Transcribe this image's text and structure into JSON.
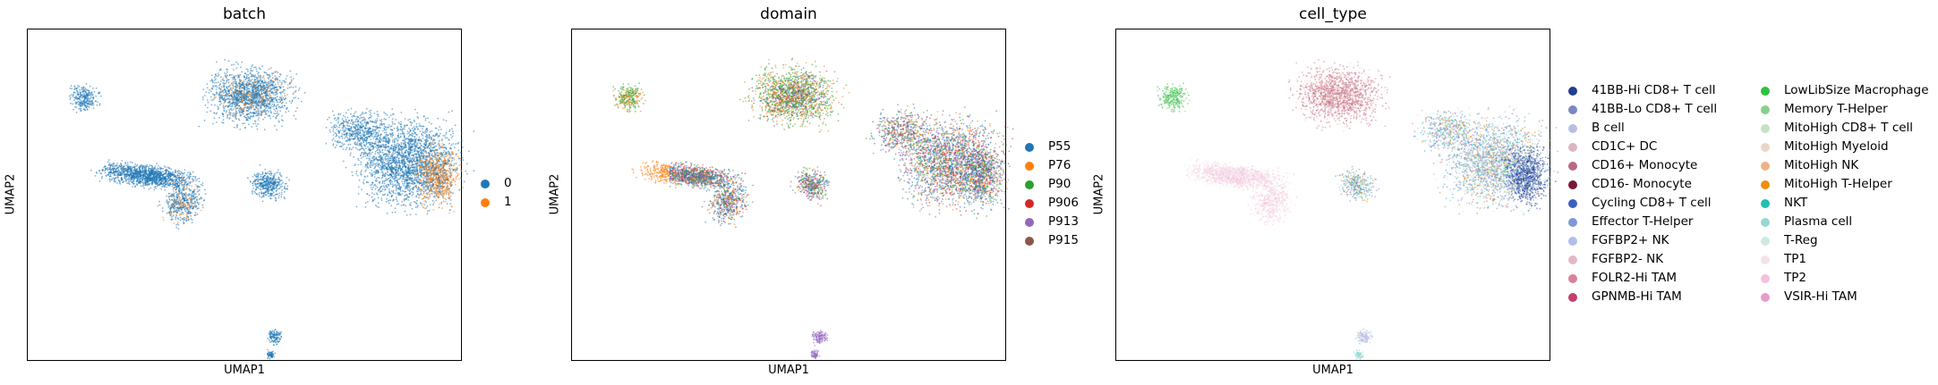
{
  "chart_data": [
    {
      "type": "scatter",
      "title": "batch",
      "xlabel": "UMAP1",
      "ylabel": "UMAP2",
      "grid": false,
      "legend_placement": "right",
      "series": [
        {
          "name": "0",
          "color": "#1f77b4"
        },
        {
          "name": "1",
          "color": "#ff7f0e"
        }
      ]
    },
    {
      "type": "scatter",
      "title": "domain",
      "xlabel": "UMAP1",
      "ylabel": "UMAP2",
      "grid": false,
      "legend_placement": "right",
      "series": [
        {
          "name": "P55",
          "color": "#1f77b4"
        },
        {
          "name": "P76",
          "color": "#ff7f0e"
        },
        {
          "name": "P90",
          "color": "#2ca02c"
        },
        {
          "name": "P906",
          "color": "#d62728"
        },
        {
          "name": "P913",
          "color": "#9467bd"
        },
        {
          "name": "P915",
          "color": "#8c564b"
        }
      ]
    },
    {
      "type": "scatter",
      "title": "cell_type",
      "xlabel": "UMAP1",
      "ylabel": "UMAP2",
      "grid": false,
      "legend_placement": "right",
      "series": [
        {
          "name": "41BB-Hi CD8+ T cell",
          "color": "#1f3f8f"
        },
        {
          "name": "41BB-Lo CD8+ T cell",
          "color": "#7d87c3"
        },
        {
          "name": "B cell",
          "color": "#b9bfe0"
        },
        {
          "name": "CD1C+ DC",
          "color": "#dcb5c4"
        },
        {
          "name": "CD16+ Monocyte",
          "color": "#b86a82"
        },
        {
          "name": "CD16- Monocyte",
          "color": "#7a1737"
        },
        {
          "name": "Cycling CD8+ T cell",
          "color": "#3a5fbf"
        },
        {
          "name": "Effector T-Helper",
          "color": "#7f98d9"
        },
        {
          "name": "FGFBP2+ NK",
          "color": "#b3bdea"
        },
        {
          "name": "FGFBP2- NK",
          "color": "#e2b9c6"
        },
        {
          "name": "FOLR2-Hi TAM",
          "color": "#d98299"
        },
        {
          "name": "GPNMB-Hi TAM",
          "color": "#c43f6e"
        },
        {
          "name": "LowLibSize Macrophage",
          "color": "#2cc33c"
        },
        {
          "name": "Memory T-Helper",
          "color": "#88d08e"
        },
        {
          "name": "MitoHigh CD8+ T cell",
          "color": "#c4e2c5"
        },
        {
          "name": "MitoHigh Myeloid",
          "color": "#e8d5c6"
        },
        {
          "name": "MitoHigh NK",
          "color": "#f0b284"
        },
        {
          "name": "MitoHigh T-Helper",
          "color": "#ef8e0f"
        },
        {
          "name": "NKT",
          "color": "#1fbfae"
        },
        {
          "name": "Plasma cell",
          "color": "#96d9d2"
        },
        {
          "name": "T-Reg",
          "color": "#cde9e4"
        },
        {
          "name": "TP1",
          "color": "#f2e3ea"
        },
        {
          "name": "TP2",
          "color": "#f5c0dc"
        },
        {
          "name": "VSIR-Hi TAM",
          "color": "#e89ccc"
        }
      ]
    }
  ]
}
